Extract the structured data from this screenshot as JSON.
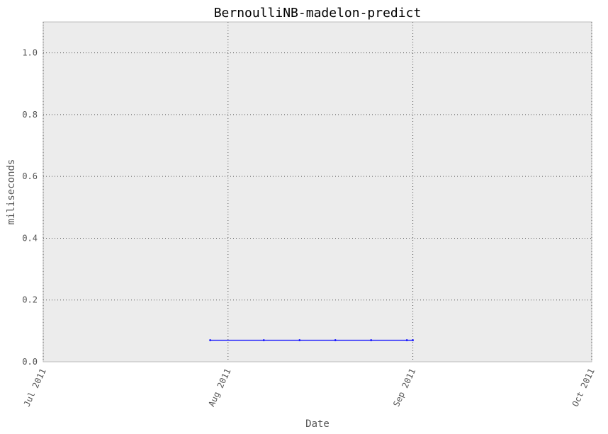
{
  "chart_data": {
    "type": "line",
    "title": "BernoulliNB-madelon-predict",
    "xlabel": "Date",
    "ylabel": "miliseconds",
    "xlim": [
      "2011-07-01",
      "2011-10-01"
    ],
    "ylim": [
      0,
      1.1
    ],
    "x_ticks": [
      {
        "date": "2011-07-01",
        "label": "Jul 2011"
      },
      {
        "date": "2011-08-01",
        "label": "Aug 2011"
      },
      {
        "date": "2011-09-01",
        "label": "Sep 2011"
      },
      {
        "date": "2011-10-01",
        "label": "Oct 2011"
      }
    ],
    "y_ticks": [
      {
        "value": 0.0,
        "label": "0.0"
      },
      {
        "value": 0.2,
        "label": "0.2"
      },
      {
        "value": 0.4,
        "label": "0.4"
      },
      {
        "value": 0.6,
        "label": "0.6"
      },
      {
        "value": 0.8,
        "label": "0.8"
      },
      {
        "value": 1.0,
        "label": "1.0"
      }
    ],
    "grid": true,
    "series": [
      {
        "color": "#0000ff",
        "x": [
          "2011-07-29",
          "2011-08-07",
          "2011-08-13",
          "2011-08-19",
          "2011-08-25",
          "2011-08-31",
          "2011-09-01"
        ],
        "y": [
          0.07,
          0.07,
          0.07,
          0.07,
          0.07,
          0.07,
          0.07
        ]
      }
    ]
  }
}
